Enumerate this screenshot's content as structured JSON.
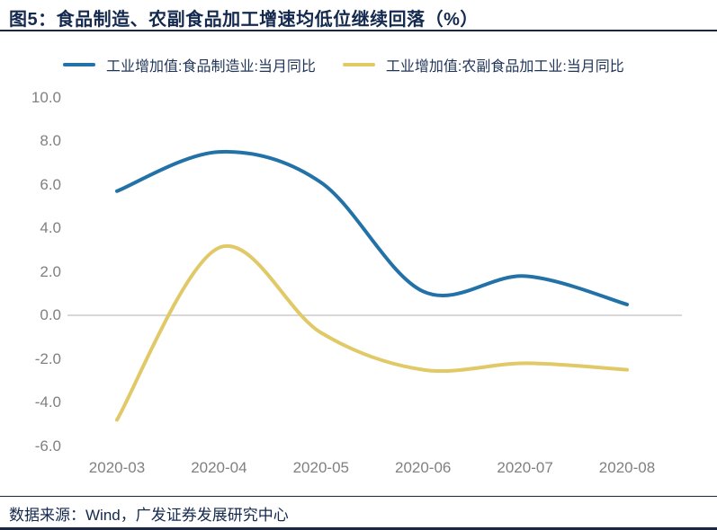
{
  "title": "图5：食品制造、农副食品加工增速均低位继续回落（%）",
  "footer": {
    "source_text": "数据来源：Wind，广发证券发展研究中心"
  },
  "colors": {
    "accent_navy": "#1b2742",
    "title_text": "#14294e",
    "legend_text": "#1f3356",
    "axis_text": "#808080",
    "zero_line": "#cccccc",
    "series_blue": "#2272a8",
    "series_yellow": "#e0c966"
  },
  "chart_data": {
    "type": "line",
    "smooth": true,
    "title": "图5：食品制造、农副食品加工增速均低位继续回落（%）",
    "categories": [
      "2020-03",
      "2020-04",
      "2020-05",
      "2020-06",
      "2020-07",
      "2020-08"
    ],
    "series": [
      {
        "name": "工业增加值:食品制造业:当月同比",
        "color": "#2272a8",
        "values": [
          5.7,
          7.5,
          6.1,
          1.1,
          1.8,
          0.5
        ]
      },
      {
        "name": "工业增加值:农副食品加工业:当月同比",
        "color": "#e0c966",
        "values": [
          -4.8,
          3.1,
          -0.8,
          -2.5,
          -2.2,
          -2.5
        ]
      }
    ],
    "xlabel": "",
    "ylabel": "",
    "ylim": [
      -6.0,
      10.0
    ],
    "ytick_labels": [
      "10.0",
      "8.0",
      "6.0",
      "4.0",
      "2.0",
      "0.0",
      "-2.0",
      "-4.0",
      "-6.0"
    ],
    "grid": "zero-line-only",
    "legend_position": "top-left"
  }
}
